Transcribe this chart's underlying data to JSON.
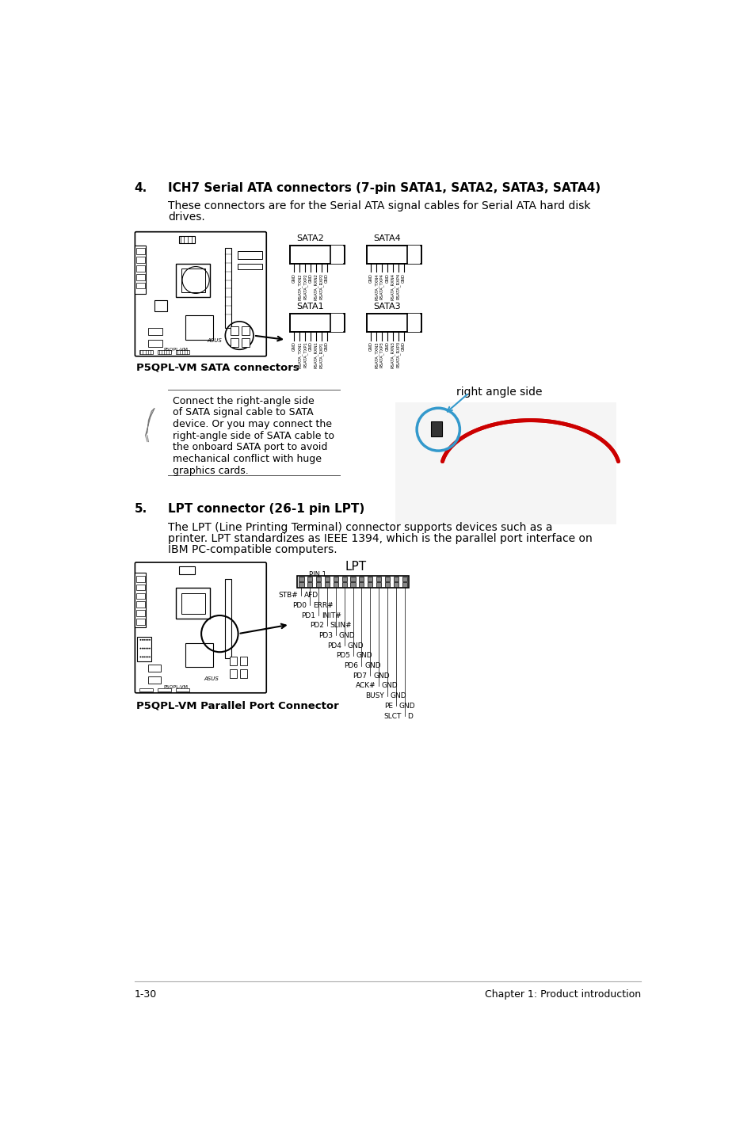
{
  "bg_color": "#ffffff",
  "footer_left": "1-30",
  "footer_right": "Chapter 1: Product introduction",
  "section4_number": "4.",
  "section4_title": "ICH7 Serial ATA connectors (7-pin SATA1, SATA2, SATA3, SATA4)",
  "section4_body1": "These connectors are for the Serial ATA signal cables for Serial ATA hard disk",
  "section4_body2": "drives.",
  "note_text_lines": [
    "Connect the right-angle side",
    "of SATA signal cable to SATA",
    "device. Or you may connect the",
    "right-angle side of SATA cable to",
    "the onboard SATA port to avoid",
    "mechanical conflict with huge",
    "graphics cards."
  ],
  "right_angle_label": "right angle side",
  "sata_caption": "P5QPL-VM SATA connectors",
  "section5_number": "5.",
  "section5_title": "LPT connector (26-1 pin LPT)",
  "section5_body1": "The LPT (Line Printing Terminal) connector supports devices such as a",
  "section5_body2": "printer. LPT standardizes as IEEE 1394, which is the parallel port interface on",
  "section5_body3": "IBM PC-compatible computers.",
  "lpt_caption": "P5QPL-VM Parallel Port Connector",
  "lpt_title": "LPT",
  "lpt_pin1": "PIN 1",
  "lpt_pins_left": [
    "STB#",
    "PD0",
    "PD1",
    "PD2",
    "PD3",
    "PD4",
    "PD5",
    "PD6",
    "PD7",
    "ACK#",
    "BUSY",
    "PE",
    "SLCT"
  ],
  "lpt_pins_right": [
    "AFD",
    "ERR#",
    "INIT#",
    "SLIN#",
    "GND",
    "GND",
    "GND",
    "GND",
    "GND",
    "GND",
    "GND",
    "GND",
    "D"
  ],
  "sata2_pins": [
    "GND",
    "TXN2",
    "TXP2",
    "GND",
    "RXN2",
    "RXP2",
    "GND"
  ],
  "sata4_pins": [
    "GND",
    "TXN4",
    "TXP4",
    "GND",
    "RXN4",
    "RXP4",
    "GND"
  ],
  "sata1_pins": [
    "GND",
    "TXN1",
    "TXP1",
    "GND",
    "RXN1",
    "RXP1",
    "GND"
  ],
  "sata3_pins": [
    "GND",
    "TXN3",
    "TXP3",
    "GND",
    "RXN3",
    "RXP3",
    "GND"
  ],
  "text_color": "#000000",
  "blue_color": "#3399cc",
  "red_color": "#cc0000"
}
